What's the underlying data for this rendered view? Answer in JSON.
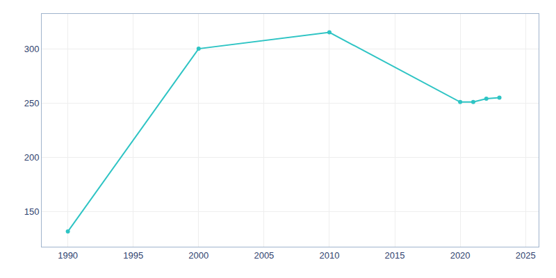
{
  "chart_data": {
    "type": "line",
    "x": [
      1990,
      2000,
      2010,
      2020,
      2021,
      2022,
      2023
    ],
    "values": [
      132,
      300,
      315,
      251,
      251,
      254,
      255
    ],
    "color": "#2ec4c4",
    "marker": "circle",
    "xlim": [
      1988,
      2026
    ],
    "ylim": [
      118,
      332
    ],
    "xticks": [
      1990,
      1995,
      2000,
      2005,
      2010,
      2015,
      2020,
      2025
    ],
    "yticks": [
      150,
      200,
      250,
      300
    ],
    "grid": true
  }
}
